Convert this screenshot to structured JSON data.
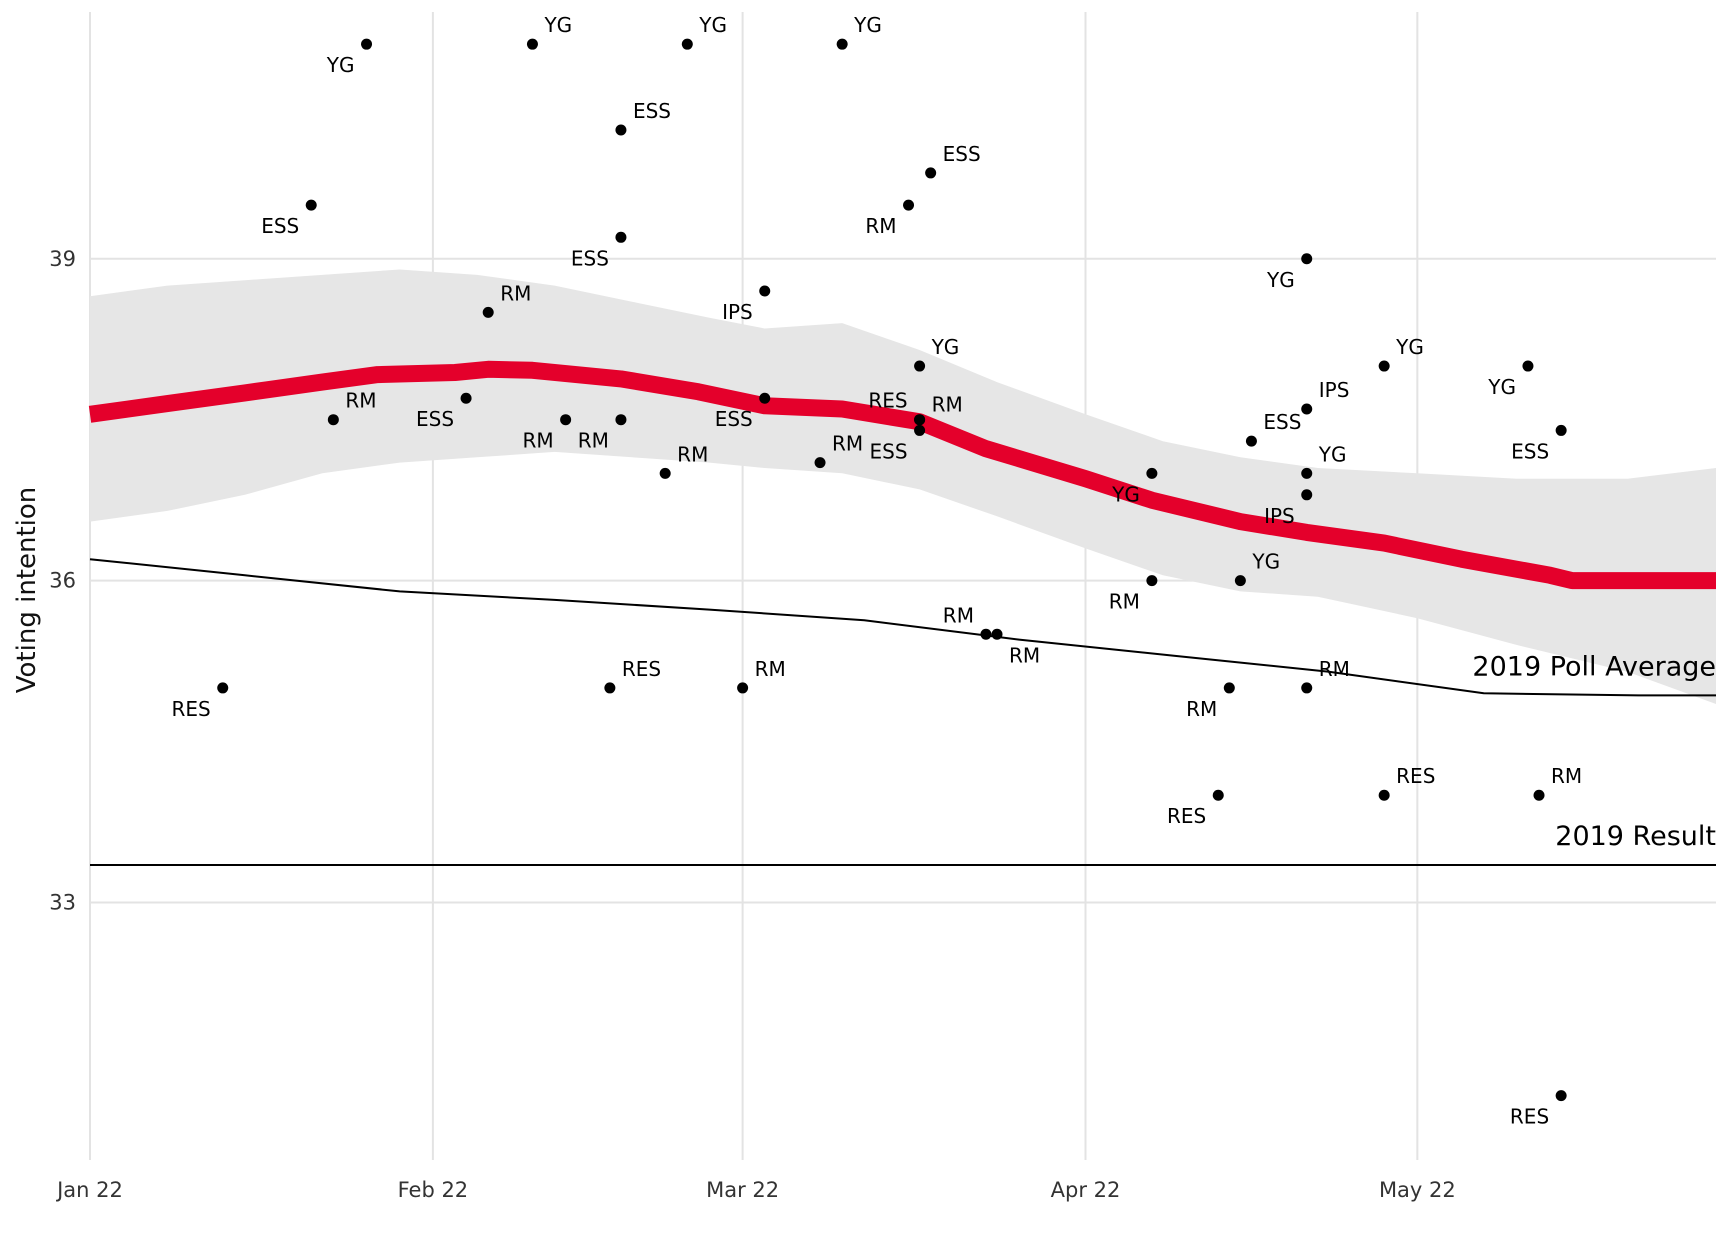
{
  "chart_data": {
    "type": "scatter",
    "title": "",
    "xlabel": "",
    "ylabel": "Voting intention",
    "x_range": [
      "2022-01-01",
      "2022-05-28"
    ],
    "ylim": [
      30.6,
      41.3
    ],
    "x_ticks": [
      {
        "date": "2022-01-01",
        "label": "Jan 22"
      },
      {
        "date": "2022-02-01",
        "label": "Feb 22"
      },
      {
        "date": "2022-03-01",
        "label": "Mar 22"
      },
      {
        "date": "2022-04-01",
        "label": "Apr 22"
      },
      {
        "date": "2022-05-01",
        "label": "May 22"
      }
    ],
    "y_ticks": [
      33,
      36,
      39
    ],
    "grid": true,
    "legend": "none",
    "colors": {
      "trend": "#e4002b",
      "band": "#e6e6e6",
      "points": "#000000",
      "reference": "#000000",
      "grid": "#e3e3e3"
    },
    "polls": [
      {
        "date": "2022-01-13",
        "value": 35.0,
        "pollster": "RES",
        "pos": "bl"
      },
      {
        "date": "2022-01-21",
        "value": 39.5,
        "pollster": "ESS",
        "pos": "bl"
      },
      {
        "date": "2022-01-23",
        "value": 37.5,
        "pollster": "RM",
        "pos": "tr"
      },
      {
        "date": "2022-01-26",
        "value": 41.0,
        "pollster": "YG",
        "pos": "bl"
      },
      {
        "date": "2022-02-04",
        "value": 37.7,
        "pollster": "ESS",
        "pos": "bl"
      },
      {
        "date": "2022-02-06",
        "value": 38.5,
        "pollster": "RM",
        "pos": "tr"
      },
      {
        "date": "2022-02-10",
        "value": 41.0,
        "pollster": "YG",
        "pos": "tr"
      },
      {
        "date": "2022-02-13",
        "value": 37.5,
        "pollster": "RM",
        "pos": "bl"
      },
      {
        "date": "2022-02-17",
        "value": 35.0,
        "pollster": "RES",
        "pos": "tr"
      },
      {
        "date": "2022-02-18",
        "value": 40.2,
        "pollster": "ESS",
        "pos": "tr"
      },
      {
        "date": "2022-02-18",
        "value": 39.2,
        "pollster": "ESS",
        "pos": "bl"
      },
      {
        "date": "2022-02-18",
        "value": 37.5,
        "pollster": "RM",
        "pos": "bl"
      },
      {
        "date": "2022-02-22",
        "value": 37.0,
        "pollster": "RM",
        "pos": "tr"
      },
      {
        "date": "2022-02-24",
        "value": 41.0,
        "pollster": "YG",
        "pos": "tr"
      },
      {
        "date": "2022-03-01",
        "value": 35.0,
        "pollster": "RM",
        "pos": "tr"
      },
      {
        "date": "2022-03-03",
        "value": 38.7,
        "pollster": "IPS",
        "pos": "bl"
      },
      {
        "date": "2022-03-03",
        "value": 37.7,
        "pollster": "ESS",
        "pos": "bl"
      },
      {
        "date": "2022-03-08",
        "value": 37.1,
        "pollster": "RM",
        "pos": "tr"
      },
      {
        "date": "2022-03-10",
        "value": 41.0,
        "pollster": "YG",
        "pos": "tr"
      },
      {
        "date": "2022-03-16",
        "value": 39.5,
        "pollster": "RM",
        "pos": "bl"
      },
      {
        "date": "2022-03-17",
        "value": 38.0,
        "pollster": "YG",
        "pos": "tr"
      },
      {
        "date": "2022-03-17",
        "value": 37.5,
        "pollster": "RES",
        "pos": "tl"
      },
      {
        "date": "2022-03-17",
        "value": 37.5,
        "pollster": "RM",
        "pos": "r"
      },
      {
        "date": "2022-03-17",
        "value": 37.4,
        "pollster": "ESS",
        "pos": "bl"
      },
      {
        "date": "2022-03-18",
        "value": 39.8,
        "pollster": "ESS",
        "pos": "tr"
      },
      {
        "date": "2022-03-23",
        "value": 35.5,
        "pollster": "RM",
        "pos": "tl"
      },
      {
        "date": "2022-03-24",
        "value": 35.5,
        "pollster": "RM",
        "pos": "br"
      },
      {
        "date": "2022-04-07",
        "value": 37.0,
        "pollster": "YG",
        "pos": "bl"
      },
      {
        "date": "2022-04-07",
        "value": 36.0,
        "pollster": "RM",
        "pos": "bl"
      },
      {
        "date": "2022-04-13",
        "value": 34.0,
        "pollster": "RES",
        "pos": "bl"
      },
      {
        "date": "2022-04-14",
        "value": 35.0,
        "pollster": "RM",
        "pos": "bl"
      },
      {
        "date": "2022-04-15",
        "value": 36.0,
        "pollster": "YG",
        "pos": "tr"
      },
      {
        "date": "2022-04-16",
        "value": 37.3,
        "pollster": "ESS",
        "pos": "tr"
      },
      {
        "date": "2022-04-21",
        "value": 39.0,
        "pollster": "YG",
        "pos": "bl"
      },
      {
        "date": "2022-04-21",
        "value": 37.6,
        "pollster": "IPS",
        "pos": "tr"
      },
      {
        "date": "2022-04-21",
        "value": 37.0,
        "pollster": "YG",
        "pos": "tr"
      },
      {
        "date": "2022-04-21",
        "value": 36.8,
        "pollster": "IPS",
        "pos": "bl"
      },
      {
        "date": "2022-04-21",
        "value": 35.0,
        "pollster": "RM",
        "pos": "tr"
      },
      {
        "date": "2022-04-28",
        "value": 38.0,
        "pollster": "YG",
        "pos": "tr"
      },
      {
        "date": "2022-04-28",
        "value": 34.0,
        "pollster": "RES",
        "pos": "tr"
      },
      {
        "date": "2022-05-11",
        "value": 38.0,
        "pollster": "YG",
        "pos": "bl"
      },
      {
        "date": "2022-05-12",
        "value": 34.0,
        "pollster": "RM",
        "pos": "tr"
      },
      {
        "date": "2022-05-14",
        "value": 37.4,
        "pollster": "ESS",
        "pos": "bl"
      },
      {
        "date": "2022-05-14",
        "value": 31.2,
        "pollster": "RES",
        "pos": "bl"
      }
    ],
    "trend": [
      {
        "date": "2022-01-01",
        "value": 37.55
      },
      {
        "date": "2022-01-08",
        "value": 37.65
      },
      {
        "date": "2022-01-15",
        "value": 37.75
      },
      {
        "date": "2022-01-22",
        "value": 37.85
      },
      {
        "date": "2022-01-27",
        "value": 37.92
      },
      {
        "date": "2022-02-03",
        "value": 37.94
      },
      {
        "date": "2022-02-06",
        "value": 37.97
      },
      {
        "date": "2022-02-10",
        "value": 37.96
      },
      {
        "date": "2022-02-18",
        "value": 37.88
      },
      {
        "date": "2022-02-25",
        "value": 37.76
      },
      {
        "date": "2022-03-03",
        "value": 37.63
      },
      {
        "date": "2022-03-10",
        "value": 37.6
      },
      {
        "date": "2022-03-17",
        "value": 37.48
      },
      {
        "date": "2022-03-23",
        "value": 37.23
      },
      {
        "date": "2022-04-01",
        "value": 36.95
      },
      {
        "date": "2022-04-07",
        "value": 36.75
      },
      {
        "date": "2022-04-15",
        "value": 36.55
      },
      {
        "date": "2022-04-21",
        "value": 36.45
      },
      {
        "date": "2022-04-28",
        "value": 36.35
      },
      {
        "date": "2022-05-05",
        "value": 36.2
      },
      {
        "date": "2022-05-13",
        "value": 36.05
      },
      {
        "date": "2022-05-15",
        "value": 36.0
      },
      {
        "date": "2022-05-28",
        "value": 36.0
      }
    ],
    "band_upper": [
      {
        "date": "2022-01-01",
        "value": 38.65
      },
      {
        "date": "2022-01-08",
        "value": 38.75
      },
      {
        "date": "2022-01-15",
        "value": 38.8
      },
      {
        "date": "2022-01-22",
        "value": 38.85
      },
      {
        "date": "2022-01-29",
        "value": 38.9
      },
      {
        "date": "2022-02-05",
        "value": 38.85
      },
      {
        "date": "2022-02-12",
        "value": 38.75
      },
      {
        "date": "2022-02-19",
        "value": 38.6
      },
      {
        "date": "2022-02-26",
        "value": 38.45
      },
      {
        "date": "2022-03-03",
        "value": 38.35
      },
      {
        "date": "2022-03-10",
        "value": 38.4
      },
      {
        "date": "2022-03-17",
        "value": 38.15
      },
      {
        "date": "2022-03-24",
        "value": 37.85
      },
      {
        "date": "2022-04-01",
        "value": 37.55
      },
      {
        "date": "2022-04-08",
        "value": 37.3
      },
      {
        "date": "2022-04-15",
        "value": 37.15
      },
      {
        "date": "2022-04-22",
        "value": 37.05
      },
      {
        "date": "2022-05-01",
        "value": 37.0
      },
      {
        "date": "2022-05-10",
        "value": 36.95
      },
      {
        "date": "2022-05-20",
        "value": 36.95
      },
      {
        "date": "2022-05-28",
        "value": 37.05
      }
    ],
    "band_lower": [
      {
        "date": "2022-01-01",
        "value": 36.55
      },
      {
        "date": "2022-01-08",
        "value": 36.65
      },
      {
        "date": "2022-01-15",
        "value": 36.8
      },
      {
        "date": "2022-01-22",
        "value": 37.0
      },
      {
        "date": "2022-01-29",
        "value": 37.1
      },
      {
        "date": "2022-02-05",
        "value": 37.15
      },
      {
        "date": "2022-02-12",
        "value": 37.2
      },
      {
        "date": "2022-02-19",
        "value": 37.15
      },
      {
        "date": "2022-02-26",
        "value": 37.1
      },
      {
        "date": "2022-03-03",
        "value": 37.05
      },
      {
        "date": "2022-03-10",
        "value": 37.0
      },
      {
        "date": "2022-03-17",
        "value": 36.85
      },
      {
        "date": "2022-03-24",
        "value": 36.6
      },
      {
        "date": "2022-04-01",
        "value": 36.3
      },
      {
        "date": "2022-04-08",
        "value": 36.05
      },
      {
        "date": "2022-04-15",
        "value": 35.9
      },
      {
        "date": "2022-04-22",
        "value": 35.85
      },
      {
        "date": "2022-05-01",
        "value": 35.65
      },
      {
        "date": "2022-05-10",
        "value": 35.4
      },
      {
        "date": "2022-05-20",
        "value": 35.15
      },
      {
        "date": "2022-05-28",
        "value": 34.85
      }
    ],
    "reference_lines": [
      {
        "label": "2019 Poll Average",
        "values": [
          {
            "date": "2022-01-01",
            "value": 36.2
          },
          {
            "date": "2022-01-15",
            "value": 36.05
          },
          {
            "date": "2022-01-29",
            "value": 35.9
          },
          {
            "date": "2022-02-12",
            "value": 35.82
          },
          {
            "date": "2022-02-26",
            "value": 35.73
          },
          {
            "date": "2022-03-12",
            "value": 35.63
          },
          {
            "date": "2022-03-26",
            "value": 35.45
          },
          {
            "date": "2022-04-09",
            "value": 35.3
          },
          {
            "date": "2022-04-23",
            "value": 35.15
          },
          {
            "date": "2022-05-07",
            "value": 34.95
          },
          {
            "date": "2022-05-21",
            "value": 34.93
          },
          {
            "date": "2022-05-28",
            "value": 34.93
          }
        ]
      },
      {
        "label": "2019 Result",
        "values": [
          {
            "date": "2022-01-01",
            "value": 33.35
          },
          {
            "date": "2022-05-28",
            "value": 33.35
          }
        ]
      }
    ]
  }
}
